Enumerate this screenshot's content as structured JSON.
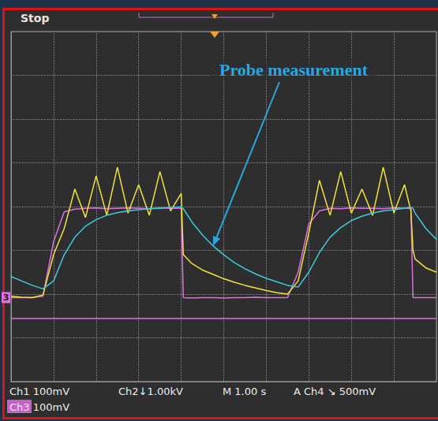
{
  "chart_data": {
    "type": "line",
    "screen_status": "Stop",
    "annotations": [
      {
        "text": "Probe measurement",
        "x": 4.75,
        "y": 3.1,
        "color": "#2aa7e0"
      }
    ],
    "channel_marker": {
      "text": "3",
      "y": 1.92,
      "color": "#e070e0"
    },
    "readouts": [
      "Ch1 100mV",
      "Ch2↓1.00kV",
      "M 1.00 s",
      "A Ch4 ↘ 500mV",
      "Ch3 100mV"
    ],
    "x": [
      0,
      0.25,
      0.5,
      0.75,
      1,
      1.25,
      1.5,
      1.75,
      2,
      2.25,
      2.5,
      2.75,
      3,
      3.25,
      3.5,
      3.75,
      4,
      4.05,
      4.25,
      4.5,
      4.75,
      5,
      5.25,
      5.5,
      5.75,
      6,
      6.25,
      6.5,
      6.75,
      7,
      7.25,
      7.5,
      7.75,
      8,
      8.25,
      8.5,
      8.75,
      9,
      9.25,
      9.4,
      9.45,
      9.5,
      9.75,
      10
    ],
    "series": [
      {
        "color": "#e070e0",
        "line_style": "solid",
        "x": [
          0,
          10
        ],
        "values": [
          1.44,
          1.44
        ]
      },
      {
        "color": "#e070e0",
        "line_style": "solid",
        "values": [
          1.92,
          1.92,
          1.92,
          1.95,
          3.2,
          3.88,
          3.94,
          3.96,
          3.97,
          3.95,
          3.96,
          3.97,
          3.96,
          3.95,
          3.97,
          3.96,
          3.96,
          1.92,
          1.91,
          1.92,
          1.92,
          1.91,
          1.92,
          1.92,
          1.93,
          1.92,
          1.92,
          1.92,
          2.5,
          3.6,
          3.9,
          3.96,
          3.95,
          3.97,
          3.96,
          3.96,
          3.95,
          3.97,
          3.96,
          3.96,
          1.92,
          1.92,
          1.92,
          1.92
        ]
      },
      {
        "color": "#f2e23c",
        "line_style": "solid",
        "values": [
          1.95,
          1.93,
          1.92,
          1.98,
          2.9,
          3.5,
          4.4,
          3.75,
          4.7,
          3.8,
          4.9,
          3.85,
          4.5,
          3.8,
          4.8,
          3.9,
          4.3,
          2.9,
          2.7,
          2.55,
          2.45,
          2.35,
          2.27,
          2.2,
          2.14,
          2.08,
          2.03,
          2.0,
          2.3,
          3.4,
          4.6,
          3.8,
          4.8,
          3.85,
          4.4,
          3.8,
          4.9,
          3.85,
          4.5,
          3.9,
          3.0,
          2.8,
          2.6,
          2.5
        ]
      },
      {
        "color": "#3fcbdc",
        "line_style": "solid",
        "values": [
          2.4,
          2.3,
          2.2,
          2.12,
          2.3,
          2.9,
          3.3,
          3.55,
          3.7,
          3.8,
          3.86,
          3.9,
          3.93,
          3.95,
          3.96,
          3.98,
          3.99,
          3.95,
          3.65,
          3.35,
          3.1,
          2.9,
          2.72,
          2.58,
          2.46,
          2.36,
          2.28,
          2.2,
          2.16,
          2.5,
          2.95,
          3.3,
          3.52,
          3.68,
          3.78,
          3.85,
          3.9,
          3.93,
          3.96,
          3.98,
          3.96,
          3.85,
          3.5,
          3.25
        ]
      }
    ],
    "xlim": [
      0,
      10
    ],
    "xticks": [
      0,
      1,
      2,
      3,
      4,
      5,
      6,
      7,
      8,
      9,
      10
    ],
    "ylim": [
      0,
      8
    ],
    "yticks": [
      0,
      1,
      2,
      3,
      4,
      5,
      6,
      7,
      8
    ],
    "grid": true,
    "tick_labels": false
  }
}
